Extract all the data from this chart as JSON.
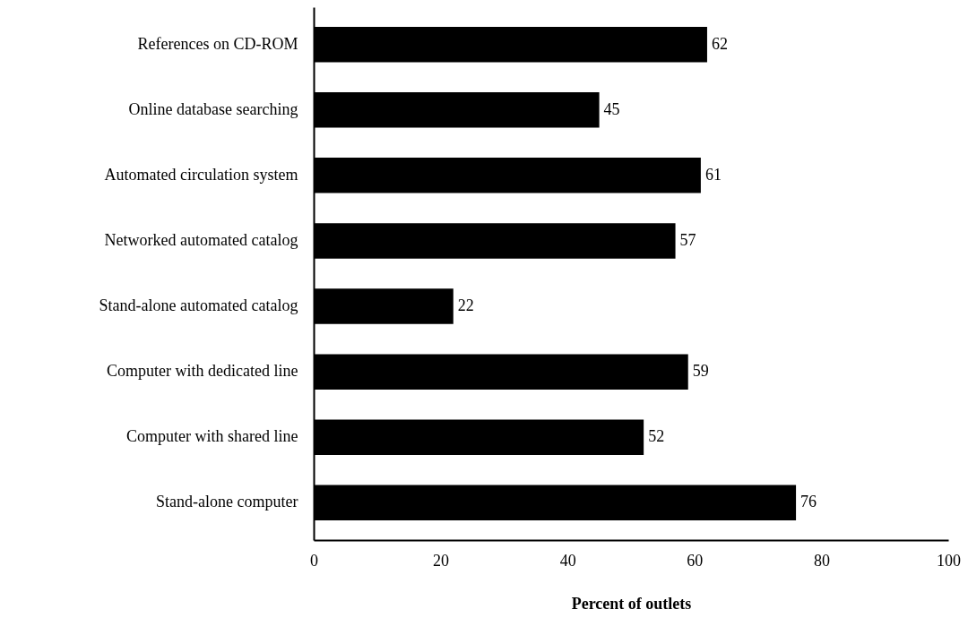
{
  "chart_data": {
    "type": "bar",
    "orientation": "horizontal",
    "xlabel": "Percent of outlets",
    "categories": [
      "References on CD-ROM",
      "Online database searching",
      "Automated circulation system",
      "Networked automated catalog",
      "Stand-alone automated catalog",
      "Computer with dedicated line",
      "Computer with shared line",
      "Stand-alone computer"
    ],
    "values": [
      62,
      45,
      61,
      57,
      22,
      59,
      52,
      76
    ],
    "color": "#000000",
    "xlim": [
      0,
      100
    ],
    "xticks": [
      0,
      20,
      40,
      60,
      80,
      100
    ],
    "grid": false,
    "data_labels": true
  }
}
